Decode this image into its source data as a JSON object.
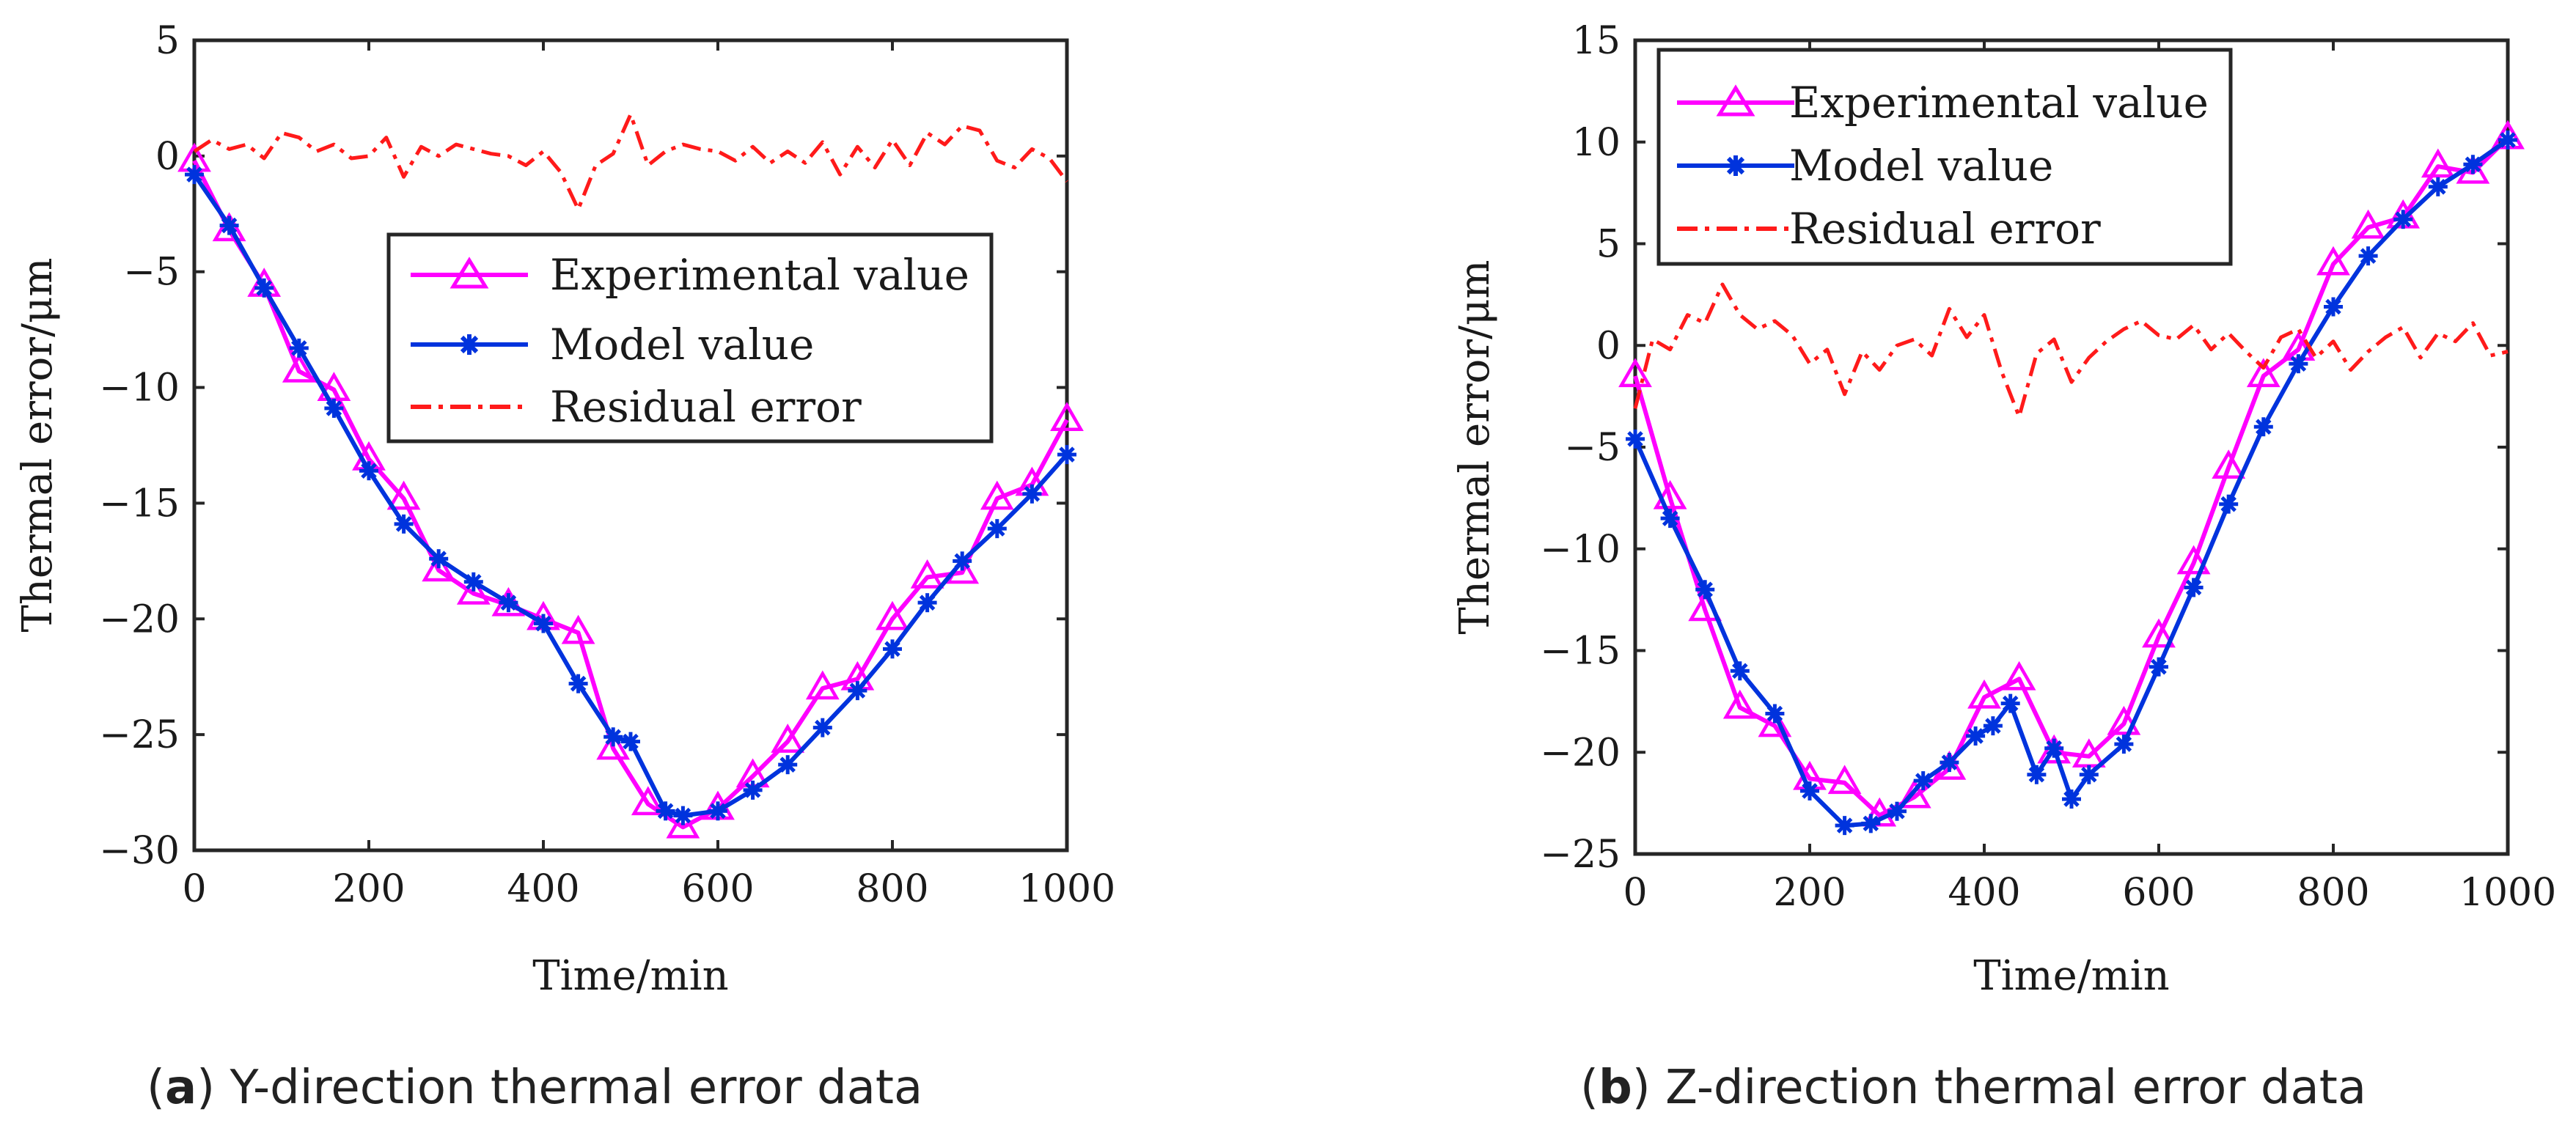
{
  "chart_data": [
    {
      "type": "line",
      "panel": "a",
      "caption_label": "a",
      "caption_text": "Y-direction thermal error data",
      "xlabel": "Time/min",
      "ylabel": "Thermal error/μm",
      "xlim": [
        0,
        1000
      ],
      "ylim": [
        -30,
        5
      ],
      "xticks": [
        0,
        200,
        400,
        600,
        800,
        1000
      ],
      "yticks": [
        5,
        0,
        -5,
        -10,
        -15,
        -20,
        -25,
        -30
      ],
      "legend_position": "center-right",
      "series": [
        {
          "name": "Experimental value",
          "color": "#ff00ff",
          "marker": "triangle",
          "x": [
            0,
            40,
            80,
            120,
            160,
            200,
            240,
            280,
            320,
            360,
            400,
            440,
            480,
            520,
            560,
            600,
            640,
            680,
            720,
            760,
            800,
            840,
            880,
            920,
            960,
            1000
          ],
          "y": [
            -0.2,
            -3.2,
            -5.6,
            -9.3,
            -10.1,
            -13.1,
            -14.8,
            -17.9,
            -18.9,
            -19.4,
            -20.0,
            -20.6,
            -25.6,
            -28.0,
            -29.0,
            -28.2,
            -26.8,
            -25.3,
            -23.0,
            -22.6,
            -20.0,
            -18.2,
            -18.0,
            -14.8,
            -14.2,
            -11.4
          ]
        },
        {
          "name": "Model value",
          "color": "#0033dd",
          "marker": "asterisk",
          "x": [
            0,
            40,
            80,
            120,
            160,
            200,
            240,
            280,
            320,
            360,
            400,
            440,
            480,
            500,
            540,
            560,
            600,
            640,
            680,
            720,
            760,
            800,
            840,
            880,
            920,
            960,
            1000
          ],
          "y": [
            -0.8,
            -3.0,
            -5.7,
            -8.3,
            -10.9,
            -13.6,
            -15.9,
            -17.4,
            -18.4,
            -19.3,
            -20.2,
            -22.8,
            -25.1,
            -25.3,
            -28.3,
            -28.5,
            -28.3,
            -27.4,
            -26.3,
            -24.7,
            -23.1,
            -21.3,
            -19.3,
            -17.5,
            -16.1,
            -14.6,
            -12.9
          ]
        },
        {
          "name": "Residual error",
          "color": "#ff1a1a",
          "marker": "none",
          "dash": "dashdot",
          "x": [
            0,
            20,
            40,
            60,
            80,
            100,
            120,
            140,
            160,
            180,
            200,
            220,
            240,
            260,
            280,
            300,
            320,
            340,
            360,
            380,
            400,
            420,
            440,
            460,
            480,
            500,
            520,
            540,
            560,
            580,
            600,
            620,
            640,
            660,
            680,
            700,
            720,
            740,
            760,
            780,
            800,
            820,
            840,
            860,
            880,
            900,
            920,
            940,
            960,
            980,
            1000
          ],
          "y": [
            0.2,
            0.7,
            0.3,
            0.5,
            -0.1,
            1.0,
            0.8,
            0.2,
            0.5,
            -0.1,
            0.0,
            0.8,
            -0.9,
            0.4,
            0.0,
            0.5,
            0.3,
            0.1,
            0.0,
            -0.4,
            0.2,
            -0.7,
            -2.3,
            -0.4,
            0.1,
            1.8,
            -0.4,
            0.2,
            0.5,
            0.3,
            0.2,
            -0.2,
            0.4,
            -0.3,
            0.2,
            -0.3,
            0.6,
            -0.8,
            0.4,
            -0.5,
            0.7,
            -0.4,
            1.0,
            0.5,
            1.3,
            1.1,
            -0.2,
            -0.5,
            0.3,
            -0.1,
            -1.1
          ]
        }
      ]
    },
    {
      "type": "line",
      "panel": "b",
      "caption_label": "b",
      "caption_text": "Z-direction thermal error data",
      "xlabel": "Time/min",
      "ylabel": "Thermal error/μm",
      "xlim": [
        0,
        1000
      ],
      "ylim": [
        -25,
        15
      ],
      "xticks": [
        0,
        200,
        400,
        600,
        800,
        1000
      ],
      "yticks": [
        15,
        10,
        5,
        0,
        -5,
        -10,
        -15,
        -20,
        -25
      ],
      "legend_position": "top-left",
      "series": [
        {
          "name": "Experimental value",
          "color": "#ff00ff",
          "marker": "triangle",
          "x": [
            0,
            40,
            80,
            120,
            160,
            200,
            240,
            280,
            320,
            360,
            400,
            440,
            480,
            520,
            560,
            600,
            640,
            680,
            720,
            760,
            800,
            840,
            880,
            920,
            960,
            1000
          ],
          "y": [
            -1.5,
            -7.5,
            -13.0,
            -17.8,
            -18.7,
            -21.3,
            -21.5,
            -23.1,
            -22.2,
            -20.8,
            -17.3,
            -16.4,
            -20.0,
            -20.2,
            -18.6,
            -14.3,
            -10.7,
            -6.0,
            -1.5,
            -0.2,
            4.0,
            5.8,
            6.3,
            8.8,
            8.5,
            10.2
          ]
        },
        {
          "name": "Model value",
          "color": "#0033dd",
          "marker": "asterisk",
          "x": [
            0,
            40,
            80,
            120,
            160,
            200,
            240,
            270,
            300,
            330,
            360,
            390,
            410,
            430,
            460,
            480,
            500,
            520,
            560,
            600,
            640,
            680,
            720,
            760,
            800,
            840,
            880,
            920,
            960,
            1000
          ],
          "y": [
            -4.6,
            -8.5,
            -12.0,
            -16.0,
            -18.1,
            -21.9,
            -23.6,
            -23.5,
            -22.9,
            -21.4,
            -20.5,
            -19.2,
            -18.7,
            -17.6,
            -21.1,
            -19.8,
            -22.3,
            -21.1,
            -19.6,
            -15.8,
            -11.9,
            -7.8,
            -4.0,
            -0.9,
            1.9,
            4.4,
            6.2,
            7.8,
            8.9,
            10.1
          ]
        },
        {
          "name": "Residual error",
          "color": "#ff1a1a",
          "marker": "none",
          "dash": "dashdot",
          "x": [
            0,
            20,
            40,
            60,
            80,
            100,
            120,
            140,
            160,
            180,
            200,
            220,
            240,
            260,
            280,
            300,
            320,
            340,
            360,
            380,
            400,
            420,
            440,
            460,
            480,
            500,
            520,
            540,
            560,
            580,
            600,
            620,
            640,
            660,
            680,
            700,
            720,
            740,
            760,
            780,
            800,
            820,
            840,
            860,
            880,
            900,
            920,
            940,
            960,
            980,
            1000
          ],
          "y": [
            -3.1,
            0.3,
            -0.2,
            1.5,
            1.1,
            3.0,
            1.5,
            0.8,
            1.2,
            0.5,
            -0.9,
            -0.2,
            -2.4,
            -0.3,
            -1.2,
            0.0,
            0.3,
            -0.5,
            1.8,
            0.4,
            1.5,
            -1.3,
            -3.5,
            -0.4,
            0.3,
            -1.8,
            -0.6,
            0.2,
            0.8,
            1.2,
            0.5,
            0.3,
            1.0,
            -0.2,
            0.6,
            -0.3,
            -1.1,
            0.4,
            0.8,
            -0.6,
            0.2,
            -1.2,
            -0.3,
            0.4,
            0.9,
            -0.6,
            0.6,
            0.2,
            1.1,
            -0.5,
            -0.3
          ]
        }
      ]
    }
  ]
}
